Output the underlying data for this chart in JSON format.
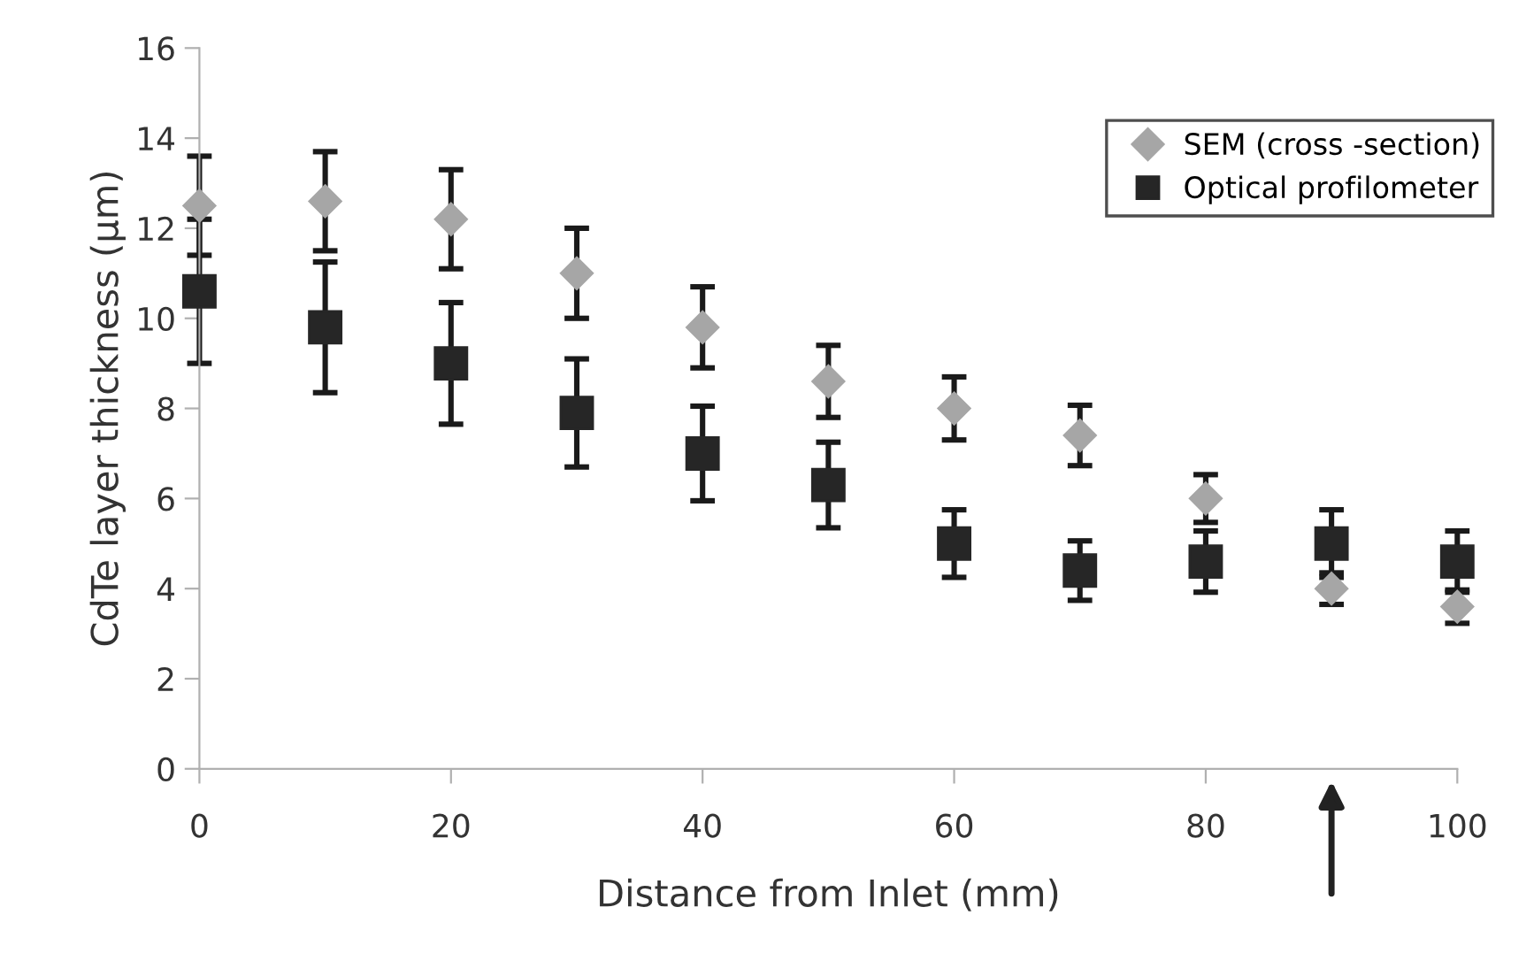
{
  "chart_data": {
    "type": "scatter",
    "xlabel": "Distance from Inlet (mm)",
    "ylabel": "CdTe layer thickness (μm)",
    "x": [
      0,
      10,
      20,
      30,
      40,
      50,
      60,
      70,
      80,
      90,
      100
    ],
    "series": [
      {
        "name": "SEM (cross -section)",
        "color": "#a6a6a6",
        "marker": "diamond",
        "values": [
          12.5,
          12.6,
          12.2,
          11.0,
          9.8,
          8.6,
          8.0,
          7.4,
          6.0,
          4.0,
          3.6
        ],
        "errors": [
          1.1,
          1.1,
          1.1,
          1.0,
          0.9,
          0.8,
          0.7,
          0.67,
          0.53,
          0.35,
          0.37
        ]
      },
      {
        "name": "Optical profilometer",
        "color": "#262626",
        "marker": "square",
        "values": [
          10.6,
          9.8,
          9.0,
          7.9,
          7.0,
          6.3,
          5.0,
          4.4,
          4.6,
          5.0,
          4.6
        ],
        "errors": [
          1.6,
          1.45,
          1.35,
          1.2,
          1.05,
          0.95,
          0.75,
          0.66,
          0.68,
          0.75,
          0.68
        ]
      }
    ],
    "xlim": [
      0,
      100
    ],
    "xticks": [
      0,
      20,
      40,
      60,
      80,
      100
    ],
    "ylim": [
      0,
      16
    ],
    "yticks": [
      0,
      2,
      4,
      6,
      8,
      10,
      12,
      14,
      16
    ],
    "grid": false,
    "legend": "top right"
  }
}
